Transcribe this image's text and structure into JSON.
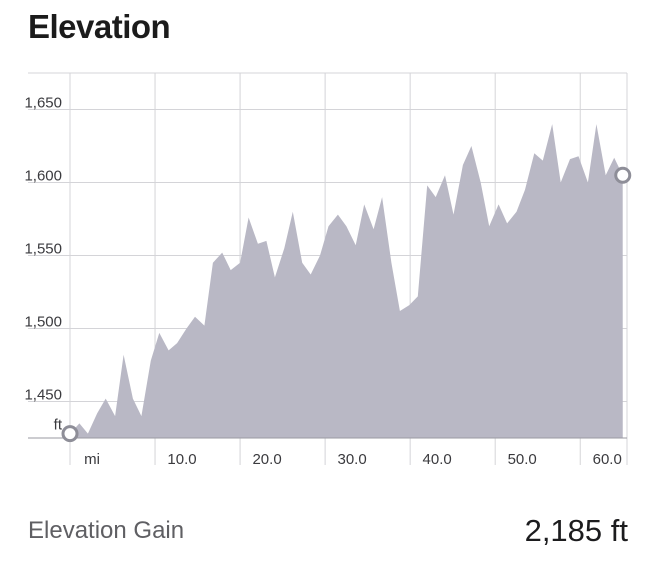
{
  "header": {
    "title": "Elevation"
  },
  "chart_data": {
    "type": "area",
    "title": "Elevation",
    "xlabel": "mi",
    "ylabel": "ft",
    "x_unit_label": "mi",
    "y_unit_label": "ft",
    "xlim": [
      0,
      65.5
    ],
    "ylim": [
      1425,
      1675
    ],
    "y_ticks": [
      1450,
      1500,
      1550,
      1600,
      1650
    ],
    "y_tick_labels": [
      "1,450",
      "1,500",
      "1,550",
      "1,600",
      "1,650"
    ],
    "x_ticks": [
      10,
      20,
      30,
      40,
      50,
      60
    ],
    "x_tick_labels": [
      "10.0",
      "20.0",
      "30.0",
      "40.0",
      "50.0",
      "60.0"
    ],
    "grid": true,
    "fill_color": "#b9b8c5",
    "series": [
      {
        "x": [
          0,
          1.1,
          2.1,
          3.2,
          4.2,
          5.3,
          6.3,
          7.4,
          8.4,
          9.5,
          10.5,
          11.6,
          12.6,
          13.7,
          14.7,
          15.8,
          16.8,
          17.9,
          18.9,
          20.0,
          21.0,
          22.1,
          23.1,
          24.1,
          25.2,
          26.2,
          27.3,
          28.3,
          29.4,
          30.4,
          31.5,
          32.5,
          33.6,
          34.6,
          35.7,
          36.7,
          37.8,
          38.8,
          39.9,
          40.9,
          42.0,
          43.0,
          44.1,
          45.1,
          46.2,
          47.2,
          48.3,
          49.3,
          50.4,
          51.4,
          52.5,
          53.5,
          54.6,
          55.6,
          56.7,
          57.7,
          58.8,
          59.8,
          60.9,
          61.9,
          63.0,
          64.0,
          65.0
        ],
        "y": [
          1428,
          1435,
          1428,
          1442,
          1452,
          1440,
          1482,
          1452,
          1440,
          1478,
          1497,
          1485,
          1490,
          1500,
          1508,
          1502,
          1545,
          1552,
          1540,
          1545,
          1576,
          1558,
          1560,
          1535,
          1555,
          1580,
          1545,
          1537,
          1550,
          1570,
          1578,
          1570,
          1557,
          1585,
          1568,
          1590,
          1545,
          1512,
          1516,
          1522,
          1598,
          1590,
          1605,
          1578,
          1612,
          1625,
          1600,
          1570,
          1585,
          1572,
          1580,
          1595,
          1620,
          1615,
          1640,
          1600,
          1616,
          1618,
          1600,
          1640,
          1605,
          1617,
          1605
        ]
      }
    ],
    "markers": [
      {
        "x": 0,
        "y": 1428
      },
      {
        "x": 65.0,
        "y": 1605
      }
    ]
  },
  "stats": {
    "label": "Elevation Gain",
    "value": "2,185 ft"
  }
}
